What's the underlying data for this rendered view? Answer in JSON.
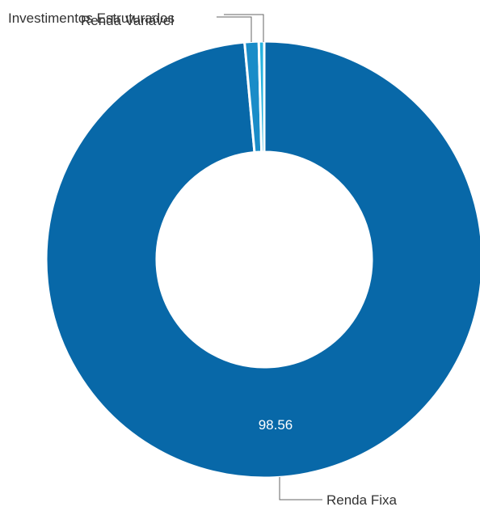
{
  "chart_data": {
    "type": "pie",
    "donut": true,
    "legend": "none",
    "slices": [
      {
        "label": "Renda Fixa",
        "value": 98.56,
        "color": "#0868a8",
        "show_value": "98.56"
      },
      {
        "label": "Investimentos Estruturados",
        "value": 1.04,
        "color": "#1a8cc8",
        "show_value": ""
      },
      {
        "label": "Renda Variável",
        "value": 0.4,
        "color": "#26b3e0",
        "show_value": ""
      }
    ],
    "start_angle_deg": 0
  }
}
